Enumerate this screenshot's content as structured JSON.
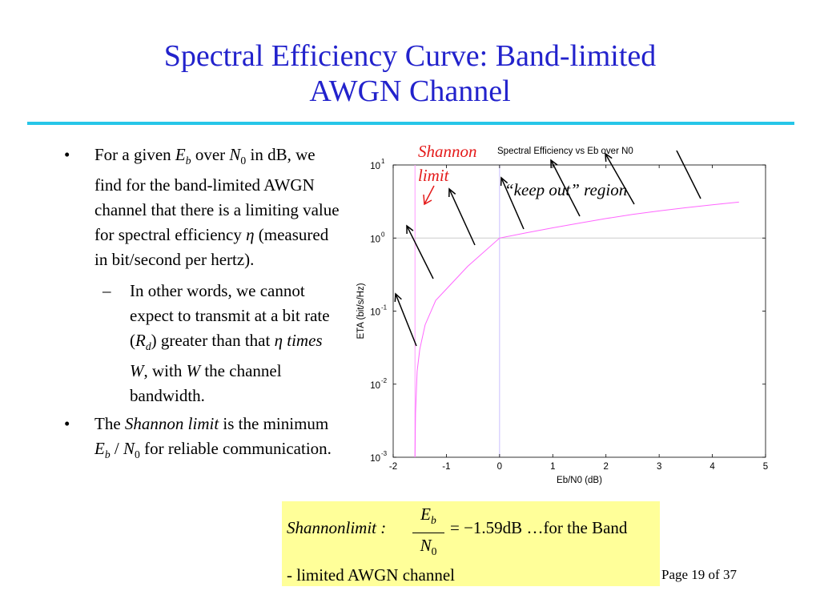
{
  "slide": {
    "title_line1": "Spectral Efficiency Curve: Band-limited",
    "title_line2": "AWGN Channel",
    "page": "Page 19 of 37"
  },
  "bullets": {
    "marker": "•",
    "sub_marker": "–",
    "b1_a": "For a given ",
    "b1_Eb": "E",
    "b1_b": "b",
    "b1_c": " over ",
    "b1_N": "N",
    "b1_0": "0",
    "b1_d": " in dB, we find for the band-limited AWGN channel that there is a limiting value for spectral efficiency ",
    "b1_eta": "η",
    "b1_e": "  (measured in bit/second per hertz).",
    "b2_a": "In other words, we cannot expect to transmit at a bit rate (",
    "b2_R": "R",
    "b2_d": "d",
    "b2_b": ") greater than that ",
    "b2_eta": "η",
    "b2_times": " times W",
    "b2_c": ", with ",
    "b2_W": "W",
    "b2_e": " the channel bandwidth.",
    "b3_a": "The ",
    "b3_sl": "Shannon limit",
    "b3_b": " is the minimum ",
    "b3_E": "E",
    "b3_bsub": "b",
    "b3_slash": " / ",
    "b3_N": "N",
    "b3_0": "0",
    "b3_c": " for reliable communication."
  },
  "annotations": {
    "shannon_limit": "Shannon limit",
    "keep_out": "“keep out” region"
  },
  "formula": {
    "lhs": "Shannonlimit :",
    "num_E": "E",
    "num_b": "b",
    "den_N": "N",
    "den_0": "0",
    "rhs": "= −1.59dB …for the Band",
    "line2": "- limited AWGN channel"
  },
  "colors": {
    "title": "#2222cc",
    "rule": "#26c6e8",
    "curve": "#ff66ff",
    "annotation": "#e41a1a",
    "formula_bg": "#ffff99"
  },
  "chart_data": {
    "type": "line",
    "title": "Spectral Efficiency vs Eb over N0",
    "xlabel": "Eb/N0 (dB)",
    "ylabel": "ETA (bit/s/Hz)",
    "xlim": [
      -2,
      5
    ],
    "ylim": [
      0.001,
      10
    ],
    "yscale": "log",
    "grid": false,
    "x_ticks": [
      "-2",
      "-1",
      "0",
      "1",
      "2",
      "3",
      "4",
      "5"
    ],
    "y_ticks": [
      {
        "base": "10",
        "exp": "-3"
      },
      {
        "base": "10",
        "exp": "-2"
      },
      {
        "base": "10",
        "exp": "-1"
      },
      {
        "base": "10",
        "exp": "0"
      },
      {
        "base": "10",
        "exp": "1"
      }
    ],
    "series": [
      {
        "x": [
          -1.59,
          -1.58,
          -1.55,
          -1.5,
          -1.4,
          -1.2,
          -1.0,
          -0.6,
          0.0,
          0.5,
          1.0,
          1.5,
          2.0,
          2.5,
          3.0,
          3.5,
          4.0,
          4.5
        ],
        "y": [
          0.001,
          0.004,
          0.015,
          0.03,
          0.065,
          0.14,
          0.2,
          0.41,
          1.0,
          1.18,
          1.38,
          1.6,
          1.85,
          2.1,
          2.35,
          2.6,
          2.85,
          3.1
        ]
      }
    ],
    "reference_lines": [
      {
        "axis": "x",
        "value": -1.59
      },
      {
        "axis": "x",
        "value": 0
      },
      {
        "axis": "y",
        "value": 1
      }
    ]
  }
}
